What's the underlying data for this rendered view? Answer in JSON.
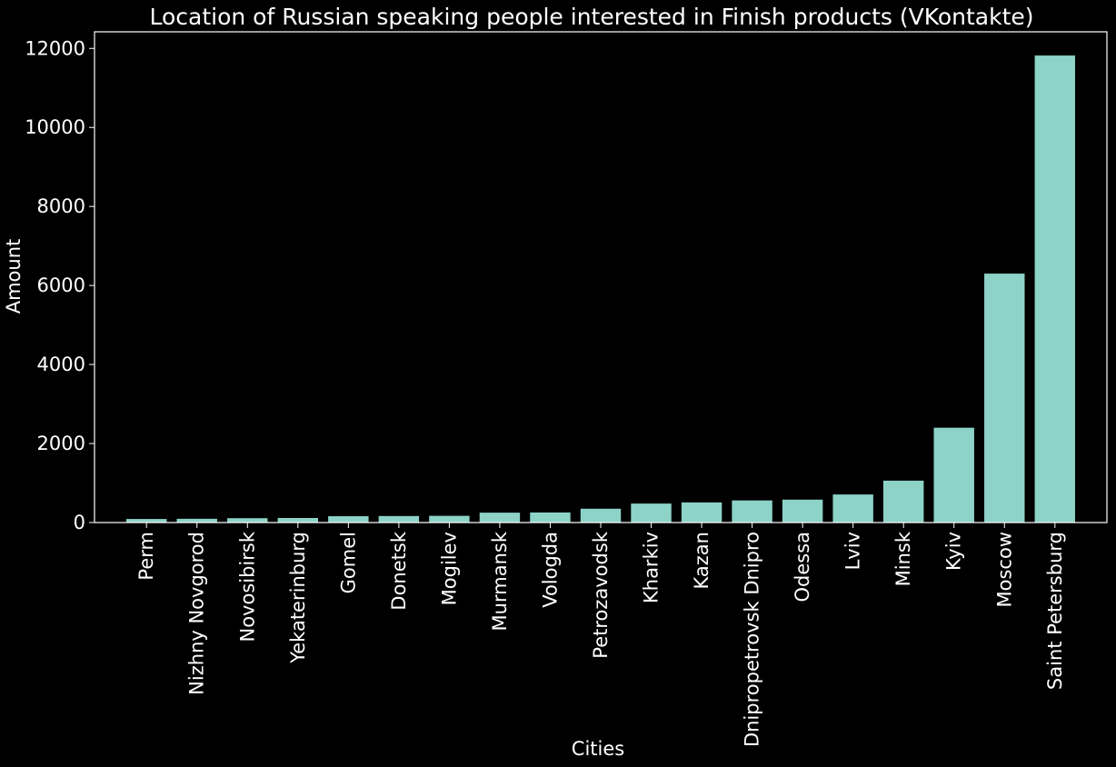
{
  "chart_data": {
    "type": "bar",
    "title": "Location of Russian speaking people interested in Finish products (VKontakte)",
    "xlabel": "Cities",
    "ylabel": "Amount",
    "categories": [
      "Perm",
      "Nizhny Novgorod",
      "Novosibirsk",
      "Yekaterinburg",
      "Gomel",
      "Donetsk",
      "Mogilev",
      "Murmansk",
      "Vologda",
      "Petrozavodsk",
      "Kharkiv",
      "Kazan",
      "Dnipropetrovsk Dnipro",
      "Odessa",
      "Lviv",
      "Minsk",
      "Kyiv",
      "Moscow",
      "Saint Petersburg"
    ],
    "values": [
      90,
      95,
      110,
      115,
      160,
      165,
      170,
      250,
      255,
      350,
      480,
      510,
      560,
      580,
      710,
      1060,
      2400,
      6300,
      11820
    ],
    "ylim": [
      0,
      12420
    ],
    "yticks": [
      0,
      2000,
      4000,
      6000,
      8000,
      10000,
      12000
    ],
    "grid": false,
    "background": "#000000",
    "bar_color": "#8dd3c7",
    "axis_color": "#ffffff",
    "text_color": "#ffffff"
  }
}
